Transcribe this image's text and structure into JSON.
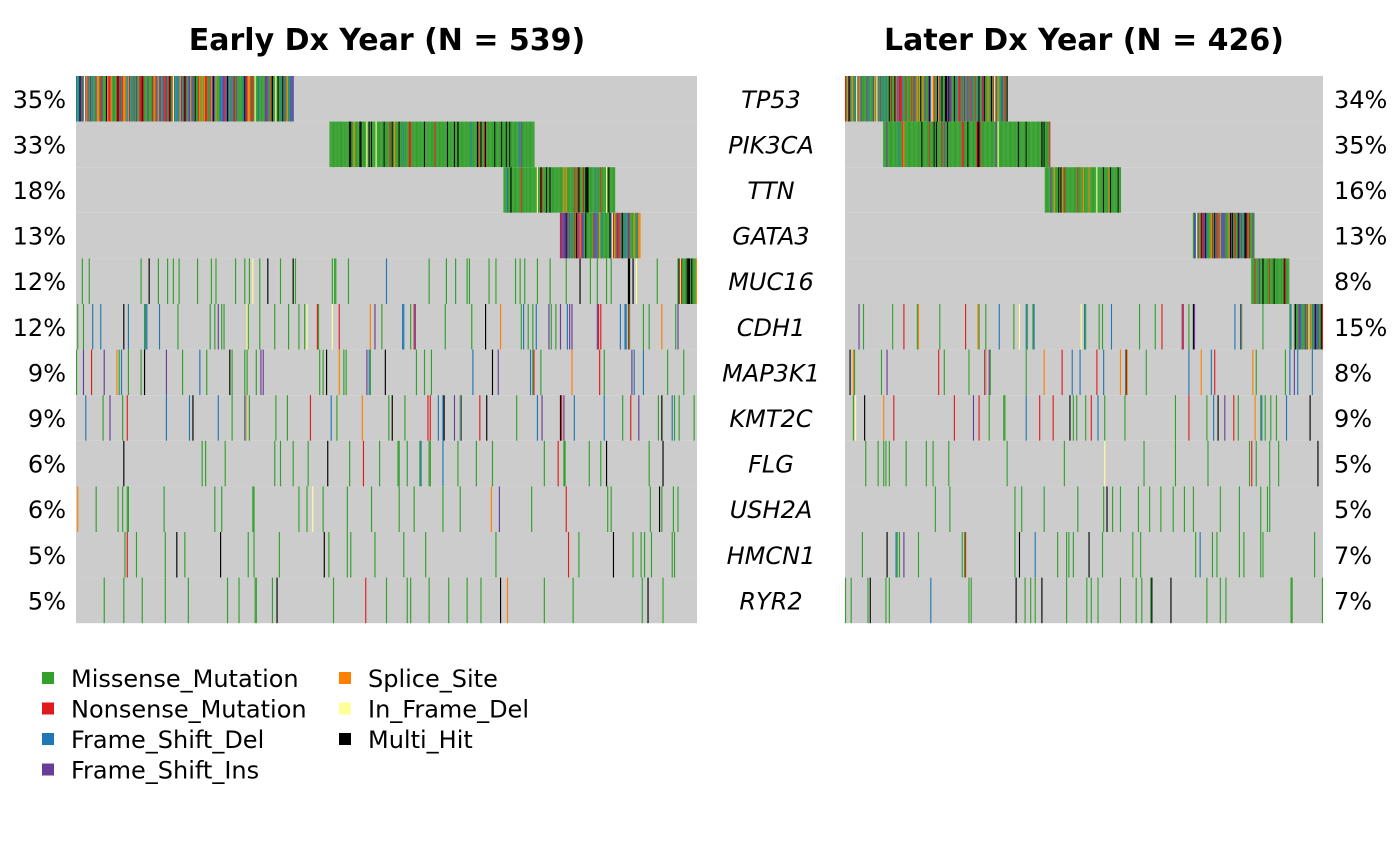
{
  "chart_data": {
    "type": "heatmap",
    "subtype": "oncoplot",
    "genes": [
      "TP53",
      "PIK3CA",
      "TTN",
      "GATA3",
      "MUC16",
      "CDH1",
      "MAP3K1",
      "KMT2C",
      "FLG",
      "USH2A",
      "HMCN1",
      "RYR2"
    ],
    "panels": [
      {
        "title": "Early Dx Year (N = 539)",
        "n_samples": 539,
        "frequencies": [
          "35%",
          "33%",
          "18%",
          "13%",
          "12%",
          "12%",
          "9%",
          "9%",
          "6%",
          "6%",
          "5%",
          "5%"
        ],
        "block_starts": [
          0,
          0.41,
          0.69,
          0.78,
          0.97,
          1.0,
          1.0,
          1.0,
          1.0,
          1.0,
          1.0,
          1.0
        ]
      },
      {
        "title": "Later Dx Year (N = 426)",
        "n_samples": 426,
        "frequencies": [
          "34%",
          "35%",
          "16%",
          "13%",
          "8%",
          "15%",
          "8%",
          "9%",
          "5%",
          "5%",
          "7%",
          "7%"
        ],
        "block_starts": [
          0,
          0.08,
          0.42,
          0.73,
          0.85,
          0.94,
          1.0,
          1.0,
          1.0,
          1.0,
          1.0,
          1.0
        ]
      }
    ],
    "legend": {
      "placement": "bottom-left",
      "items": [
        {
          "label": "Missense_Mutation",
          "color": "#33a02c"
        },
        {
          "label": "Nonsense_Mutation",
          "color": "#e31a1c"
        },
        {
          "label": "Frame_Shift_Del",
          "color": "#1f78b4"
        },
        {
          "label": "Frame_Shift_Ins",
          "color": "#6a3d9a"
        },
        {
          "label": "Splice_Site",
          "color": "#ff7f00"
        },
        {
          "label": "In_Frame_Del",
          "color": "#ffff99"
        },
        {
          "label": "Multi_Hit",
          "color": "#000000"
        }
      ]
    },
    "background_color": "#cccccc"
  }
}
